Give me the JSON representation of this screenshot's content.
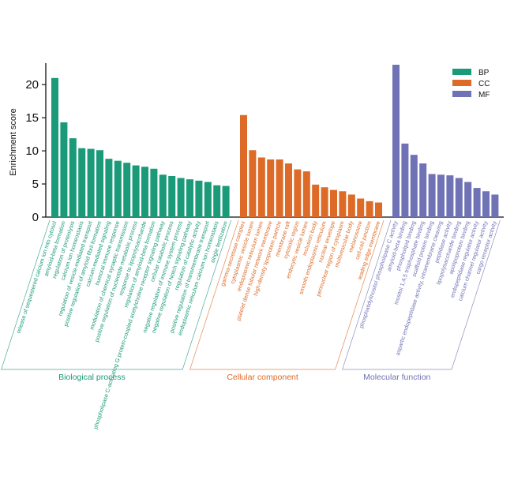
{
  "chart_data": {
    "type": "bar",
    "ylabel": "Enrichment score",
    "ylim": [
      0,
      23
    ],
    "yticks": [
      0,
      5,
      10,
      15,
      20
    ],
    "grid": false,
    "legend_placement": "top-right",
    "legend": [
      {
        "label": "BP",
        "color": "#1a9a78"
      },
      {
        "label": "CC",
        "color": "#dd6a26"
      },
      {
        "label": "MF",
        "color": "#6f73b5"
      }
    ],
    "groups": [
      {
        "key": "BP",
        "title": "Biological process",
        "color": "#1a9a78",
        "categories": [
          "release of sequestered calcium ion into cytosol",
          "amyloid-beta formation",
          "regulation of proteolysis",
          "calcium ion homeostasis",
          "regulation of vesicle-mediated transport",
          "positive regulation of amyloid fibril formation",
          "calcium-mediated signaling",
          "humoral immune response",
          "modulation of chemical synaptic transmission",
          "positive regulation of nucleotide metabolic process",
          "response to lipopolysaccharide",
          "regulation of amyloid-beta formation",
          "phospholipase C-activating G protein-coupled acetylcholine receptor signaling pathway",
          "cellular catabolic process",
          "negative regulation of immune system process",
          "negative regulation of Notch signaling pathway",
          "regulation of catalytic activity",
          "positive regulation of transmembrane transport",
          "endoplasmic reticulum calcium ion homeostasis",
          "single fertilization"
        ],
        "values": [
          21.0,
          14.3,
          11.9,
          10.4,
          10.3,
          10.1,
          8.8,
          8.5,
          8.2,
          7.8,
          7.6,
          7.3,
          6.4,
          6.2,
          5.9,
          5.7,
          5.5,
          5.3,
          4.8,
          4.7
        ]
      },
      {
        "key": "CC",
        "title": "Cellular component",
        "color": "#dd6a26",
        "categories": [
          "gamma-secretase complex",
          "cytoplasmic vesicle lumen",
          "endoplasmic reticulum lumen",
          "platelet dense tubular network membrane",
          "high-density lipoprotein particle",
          "membrane raft",
          "cytosolic region",
          "endocytic vesicle lumen",
          "inclusion body",
          "smooth endoplasmic reticulum",
          "nuclear envelope",
          "perinuclear region of cytoplasm",
          "multivesicular body",
          "melanosome",
          "cell-cell junction",
          "leading edge membrane"
        ],
        "values": [
          15.4,
          10.1,
          9.0,
          8.7,
          8.7,
          8.1,
          7.2,
          6.9,
          4.9,
          4.5,
          4.1,
          3.9,
          3.4,
          2.8,
          2.4,
          2.2
        ]
      },
      {
        "key": "MF",
        "title": "Molecular function",
        "color": "#6f73b5",
        "categories": [
          "phosphatidylinositol phospholipase C activity",
          "amyloid-beta binding",
          "phospholipid binding",
          "inositol 1,4,5 trisphosphate binding",
          "scaffold protein binding",
          "aspartic endopeptidase activity, intramembrane cleaving",
          "peptidase activity",
          "lipopolysaccharide binding",
          "apolipoprotein binding",
          "endopeptidase regulator activity",
          "calcium channel regulator activity",
          "cargo receptor activity"
        ],
        "values": [
          23.0,
          11.1,
          9.4,
          8.1,
          6.5,
          6.4,
          6.3,
          5.9,
          5.3,
          4.4,
          3.9,
          3.4
        ]
      }
    ]
  }
}
